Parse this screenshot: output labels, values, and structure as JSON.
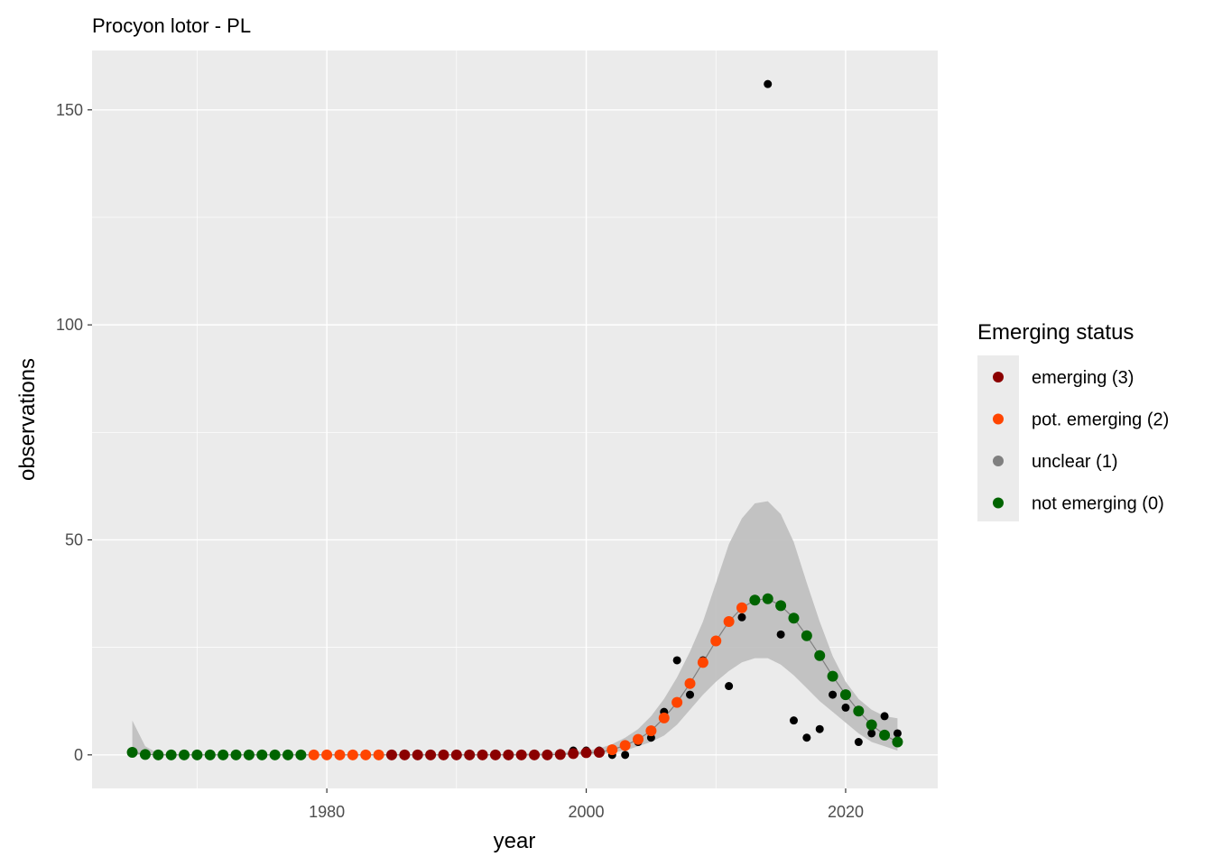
{
  "chart_data": {
    "type": "scatter",
    "title": "Procyon lotor - PL",
    "xlabel": "year",
    "ylabel": "observations",
    "xlim": [
      1961.9,
      2027.1
    ],
    "ylim": [
      -7.8,
      163.8
    ],
    "x_ticks": [
      1980,
      2000,
      2020
    ],
    "y_ticks": [
      0,
      50,
      100,
      150
    ],
    "grid": true,
    "legend": {
      "title": "Emerging status",
      "placement": "right",
      "entries": [
        {
          "label": "emerging (3)",
          "color": "#8b0000"
        },
        {
          "label": "pot. emerging (2)",
          "color": "#ff4500"
        },
        {
          "label": "unclear (1)",
          "color": "#808080"
        },
        {
          "label": "not emerging (0)",
          "color": "#006400"
        }
      ]
    },
    "observed": {
      "color": "#000000",
      "points": [
        [
          1999,
          1
        ],
        [
          2000,
          1
        ],
        [
          2001,
          1
        ],
        [
          2002,
          0
        ],
        [
          2003,
          0
        ],
        [
          2004,
          3
        ],
        [
          2005,
          4
        ],
        [
          2006,
          10
        ],
        [
          2007,
          22
        ],
        [
          2008,
          14
        ],
        [
          2009,
          22
        ],
        [
          2011,
          16
        ],
        [
          2012,
          32
        ],
        [
          2013,
          36
        ],
        [
          2014,
          156
        ],
        [
          2015,
          28
        ],
        [
          2016,
          8
        ],
        [
          2017,
          4
        ],
        [
          2018,
          6
        ],
        [
          2019,
          14
        ],
        [
          2020,
          11
        ],
        [
          2021,
          3
        ],
        [
          2022,
          5
        ],
        [
          2023,
          9
        ],
        [
          2024,
          5
        ]
      ]
    },
    "fitted": {
      "years": [
        1965,
        1966,
        1967,
        1968,
        1969,
        1970,
        1971,
        1972,
        1973,
        1974,
        1975,
        1976,
        1977,
        1978,
        1979,
        1980,
        1981,
        1982,
        1983,
        1984,
        1985,
        1986,
        1987,
        1988,
        1989,
        1990,
        1991,
        1992,
        1993,
        1994,
        1995,
        1996,
        1997,
        1998,
        1999,
        2000,
        2001,
        2002,
        2003,
        2004,
        2005,
        2006,
        2007,
        2008,
        2009,
        2010,
        2011,
        2012,
        2013,
        2014,
        2015,
        2016,
        2017,
        2018,
        2019,
        2020,
        2021,
        2022,
        2023,
        2024
      ],
      "values": [
        0.6,
        0.1,
        0,
        0,
        0,
        0,
        0,
        0,
        0,
        0,
        0,
        0,
        0,
        0,
        0,
        0,
        0,
        0,
        0,
        0,
        0,
        0,
        0,
        0,
        0,
        0,
        0,
        0,
        0,
        0,
        0,
        0,
        0,
        0.1,
        0.3,
        0.5,
        0.6,
        1.2,
        2.2,
        3.6,
        5.6,
        8.6,
        12.2,
        16.6,
        21.5,
        26.5,
        31,
        34.2,
        36,
        36.3,
        34.7,
        31.8,
        27.7,
        23.1,
        18.3,
        14,
        10.2,
        7,
        4.6,
        3
      ],
      "lower": [
        0,
        0,
        0,
        0,
        0,
        0,
        0,
        0,
        0,
        0,
        0,
        0,
        0,
        0,
        0,
        0,
        0,
        0,
        0,
        0,
        0,
        0,
        0,
        0,
        0,
        0,
        0,
        0,
        0,
        0,
        0,
        0,
        0,
        0,
        0,
        0,
        0.1,
        0.5,
        1,
        2,
        3,
        4.5,
        7,
        10.5,
        14,
        17,
        19.5,
        21.5,
        22.5,
        22.5,
        21,
        18.5,
        15.5,
        12.5,
        10,
        7.5,
        5,
        3,
        2,
        1
      ],
      "upper": [
        8,
        2,
        0.3,
        0.1,
        0.1,
        0.1,
        0.1,
        0.1,
        0.1,
        0.1,
        0.1,
        0.1,
        0.1,
        0.1,
        0.1,
        0.1,
        0.1,
        0.1,
        0.1,
        0.1,
        0.1,
        0.1,
        0.1,
        0.1,
        0.1,
        0.1,
        0.1,
        0.1,
        0.2,
        0.2,
        0.3,
        0.4,
        0.5,
        0.6,
        0.8,
        1,
        1.5,
        2.5,
        4,
        6,
        9,
        13,
        18,
        24,
        31,
        40,
        49,
        55,
        58.5,
        59,
        56,
        49.5,
        40,
        31,
        23,
        17,
        13,
        10.5,
        9,
        8.5
      ],
      "status": [
        "0",
        "0",
        "0",
        "0",
        "0",
        "0",
        "0",
        "0",
        "0",
        "0",
        "0",
        "0",
        "0",
        "0",
        "2",
        "2",
        "2",
        "2",
        "2",
        "2",
        "3",
        "3",
        "3",
        "3",
        "3",
        "3",
        "3",
        "3",
        "3",
        "3",
        "3",
        "3",
        "3",
        "3",
        "3",
        "3",
        "3",
        "2",
        "2",
        "2",
        "2",
        "2",
        "2",
        "2",
        "2",
        "2",
        "2",
        "2",
        "0",
        "0",
        "0",
        "0",
        "0",
        "0",
        "0",
        "0",
        "0",
        "0",
        "0",
        "0"
      ],
      "status_colors": {
        "3": "#8b0000",
        "2": "#ff4500",
        "1": "#808080",
        "0": "#006400"
      },
      "band_color": "#bebebe",
      "line_color": "#808080"
    }
  }
}
